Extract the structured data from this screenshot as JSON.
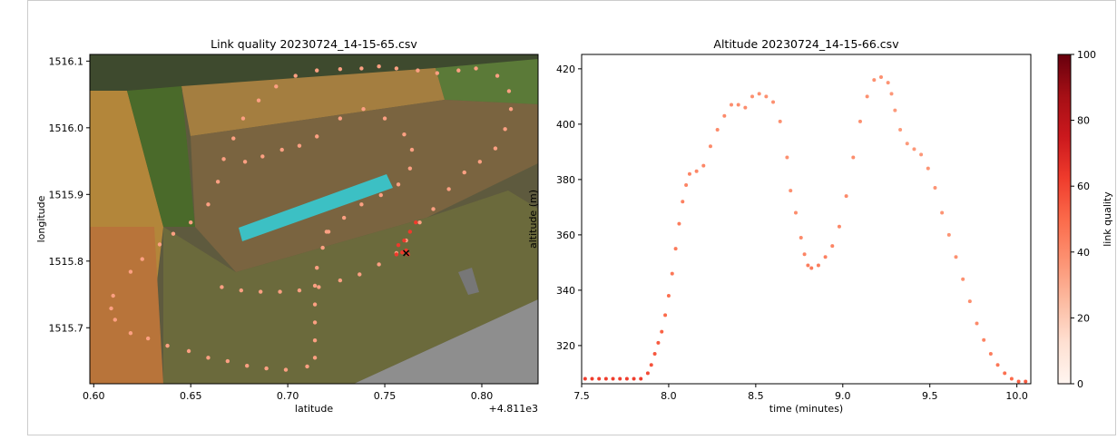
{
  "chart_data": [
    {
      "type": "scatter",
      "title": "Link quality 20230724_14-15-65.csv",
      "x_label": "latitude",
      "y_label": "longitude",
      "x_offset_label": "+4.811e3",
      "xlim": [
        0.598,
        0.829
      ],
      "ylim": [
        1515.616,
        1516.11
      ],
      "xticks": [
        {
          "value": 0.6,
          "label": "0.60"
        },
        {
          "value": 0.65,
          "label": "0.65"
        },
        {
          "value": 0.7,
          "label": "0.70"
        },
        {
          "value": 0.75,
          "label": "0.75"
        },
        {
          "value": 0.8,
          "label": "0.80"
        }
      ],
      "yticks": [
        1515.7,
        1515.8,
        1515.9,
        {
          "value": 1516.0,
          "label": "1516.0"
        },
        1516.1
      ],
      "series": [
        {
          "color": "#fca082",
          "x": [
            0.628,
            0.638,
            0.649,
            0.659,
            0.669,
            0.679,
            0.689,
            0.699,
            0.71,
            0.714,
            0.714,
            0.714,
            0.714,
            0.714,
            0.715,
            0.718,
            0.721,
            0.666,
            0.676,
            0.686,
            0.696,
            0.706,
            0.716,
            0.727,
            0.737,
            0.747,
            0.756,
            0.761,
            0.768,
            0.775,
            0.783,
            0.791,
            0.799,
            0.807,
            0.812,
            0.815,
            0.814,
            0.808,
            0.797,
            0.788,
            0.777,
            0.767,
            0.756,
            0.747,
            0.738,
            0.727,
            0.715,
            0.704,
            0.694,
            0.685,
            0.677,
            0.672,
            0.667,
            0.664,
            0.659,
            0.65,
            0.641,
            0.634,
            0.625,
            0.619,
            0.61,
            0.609,
            0.611,
            0.619,
            0.678,
            0.687,
            0.697,
            0.706,
            0.715,
            0.727,
            0.739,
            0.75,
            0.76,
            0.764,
            0.763,
            0.757,
            0.748,
            0.738,
            0.729,
            0.72
          ],
          "values": [
            1515.684,
            1515.673,
            1515.665,
            1515.655,
            1515.65,
            1515.643,
            1515.639,
            1515.637,
            1515.642,
            1515.655,
            1515.681,
            1515.708,
            1515.735,
            1515.763,
            1515.79,
            1515.82,
            1515.844,
            1515.761,
            1515.756,
            1515.754,
            1515.754,
            1515.756,
            1515.761,
            1515.771,
            1515.78,
            1515.795,
            1515.812,
            1515.831,
            1515.858,
            1515.878,
            1515.908,
            1515.933,
            1515.949,
            1515.969,
            1515.998,
            1516.028,
            1516.055,
            1516.078,
            1516.089,
            1516.086,
            1516.082,
            1516.086,
            1516.089,
            1516.092,
            1516.089,
            1516.088,
            1516.086,
            1516.078,
            1516.062,
            1516.041,
            1516.014,
            1515.984,
            1515.953,
            1515.919,
            1515.885,
            1515.858,
            1515.841,
            1515.825,
            1515.803,
            1515.784,
            1515.748,
            1515.729,
            1515.712,
            1515.692,
            1515.949,
            1515.957,
            1515.967,
            1515.973,
            1515.987,
            1516.014,
            1516.028,
            1516.014,
            1515.99,
            1515.967,
            1515.939,
            1515.915,
            1515.899,
            1515.885,
            1515.865,
            1515.844
          ]
        },
        {
          "color": "#ee3a2c",
          "x": [
            0.757,
            0.759,
            0.761,
            0.756,
            0.762,
            0.76,
            0.763,
            0.766
          ],
          "values": [
            1515.824,
            1515.813,
            1515.816,
            1515.81,
            1515.81,
            1515.831,
            1515.844,
            1515.858
          ]
        }
      ],
      "home": {
        "x": 0.761,
        "y": 1515.812,
        "color": "#000000"
      }
    },
    {
      "type": "colored_scatter",
      "title": "Altitude 20230724_14-15-66.csv",
      "x_label": "time (minutes)",
      "y_label": "altitude (m)",
      "colorbar_label": "link quality",
      "xlim": [
        7.5,
        10.08
      ],
      "ylim": [
        306.2,
        425.2
      ],
      "clim": [
        0,
        100
      ],
      "xticks": [
        7.5,
        {
          "value": 8,
          "label": "8.0"
        },
        8.5,
        {
          "value": 9,
          "label": "9.0"
        },
        9.5,
        {
          "value": 10,
          "label": "10.0"
        }
      ],
      "yticks": [
        320,
        340,
        360,
        380,
        400,
        420
      ],
      "cticks": [
        0,
        20,
        40,
        60,
        80,
        100
      ],
      "colormap": "Reds",
      "x": [
        7.52,
        7.56,
        7.6,
        7.64,
        7.68,
        7.72,
        7.76,
        7.8,
        7.84,
        7.88,
        7.9,
        7.92,
        7.94,
        7.96,
        7.98,
        8.0,
        8.02,
        8.04,
        8.06,
        8.08,
        8.1,
        8.12,
        8.16,
        8.2,
        8.24,
        8.28,
        8.32,
        8.36,
        8.4,
        8.44,
        8.48,
        8.52,
        8.56,
        8.6,
        8.64,
        8.68,
        8.7,
        8.73,
        8.76,
        8.78,
        8.8,
        8.82,
        8.86,
        8.9,
        8.94,
        8.98,
        9.02,
        9.06,
        9.1,
        9.14,
        9.18,
        9.22,
        9.26,
        9.28,
        9.3,
        9.33,
        9.37,
        9.41,
        9.45,
        9.49,
        9.53,
        9.57,
        9.61,
        9.65,
        9.69,
        9.73,
        9.77,
        9.81,
        9.85,
        9.89,
        9.93,
        9.97,
        10.01,
        10.05
      ],
      "values": [
        308,
        308,
        308,
        308,
        308,
        308,
        308,
        308,
        308,
        310,
        313,
        317,
        321,
        325,
        331,
        338,
        346,
        355,
        364,
        372,
        378,
        382,
        383,
        385,
        392,
        398,
        403,
        407,
        407,
        406,
        410,
        411,
        410,
        408,
        401,
        388,
        376,
        368,
        359,
        353,
        349,
        348,
        349,
        352,
        356,
        363,
        374,
        388,
        401,
        410,
        416,
        417,
        415,
        411,
        405,
        398,
        393,
        391,
        389,
        384,
        377,
        368,
        360,
        352,
        344,
        336,
        328,
        322,
        317,
        313,
        310,
        308,
        307,
        307
      ],
      "c": [
        62,
        62,
        62,
        62,
        62,
        62,
        62,
        62,
        62,
        58,
        56,
        55,
        54,
        52,
        50,
        48,
        46,
        45,
        44,
        43,
        42,
        42,
        41,
        41,
        40,
        40,
        40,
        39,
        39,
        39,
        38,
        38,
        38,
        38,
        38,
        38,
        38,
        39,
        40,
        42,
        44,
        45,
        44,
        43,
        42,
        41,
        40,
        39,
        38,
        38,
        38,
        38,
        37,
        36,
        35,
        35,
        35,
        36,
        36,
        37,
        37,
        37,
        37,
        38,
        38,
        39,
        40,
        42,
        44,
        46,
        48,
        50,
        52,
        54
      ]
    }
  ]
}
